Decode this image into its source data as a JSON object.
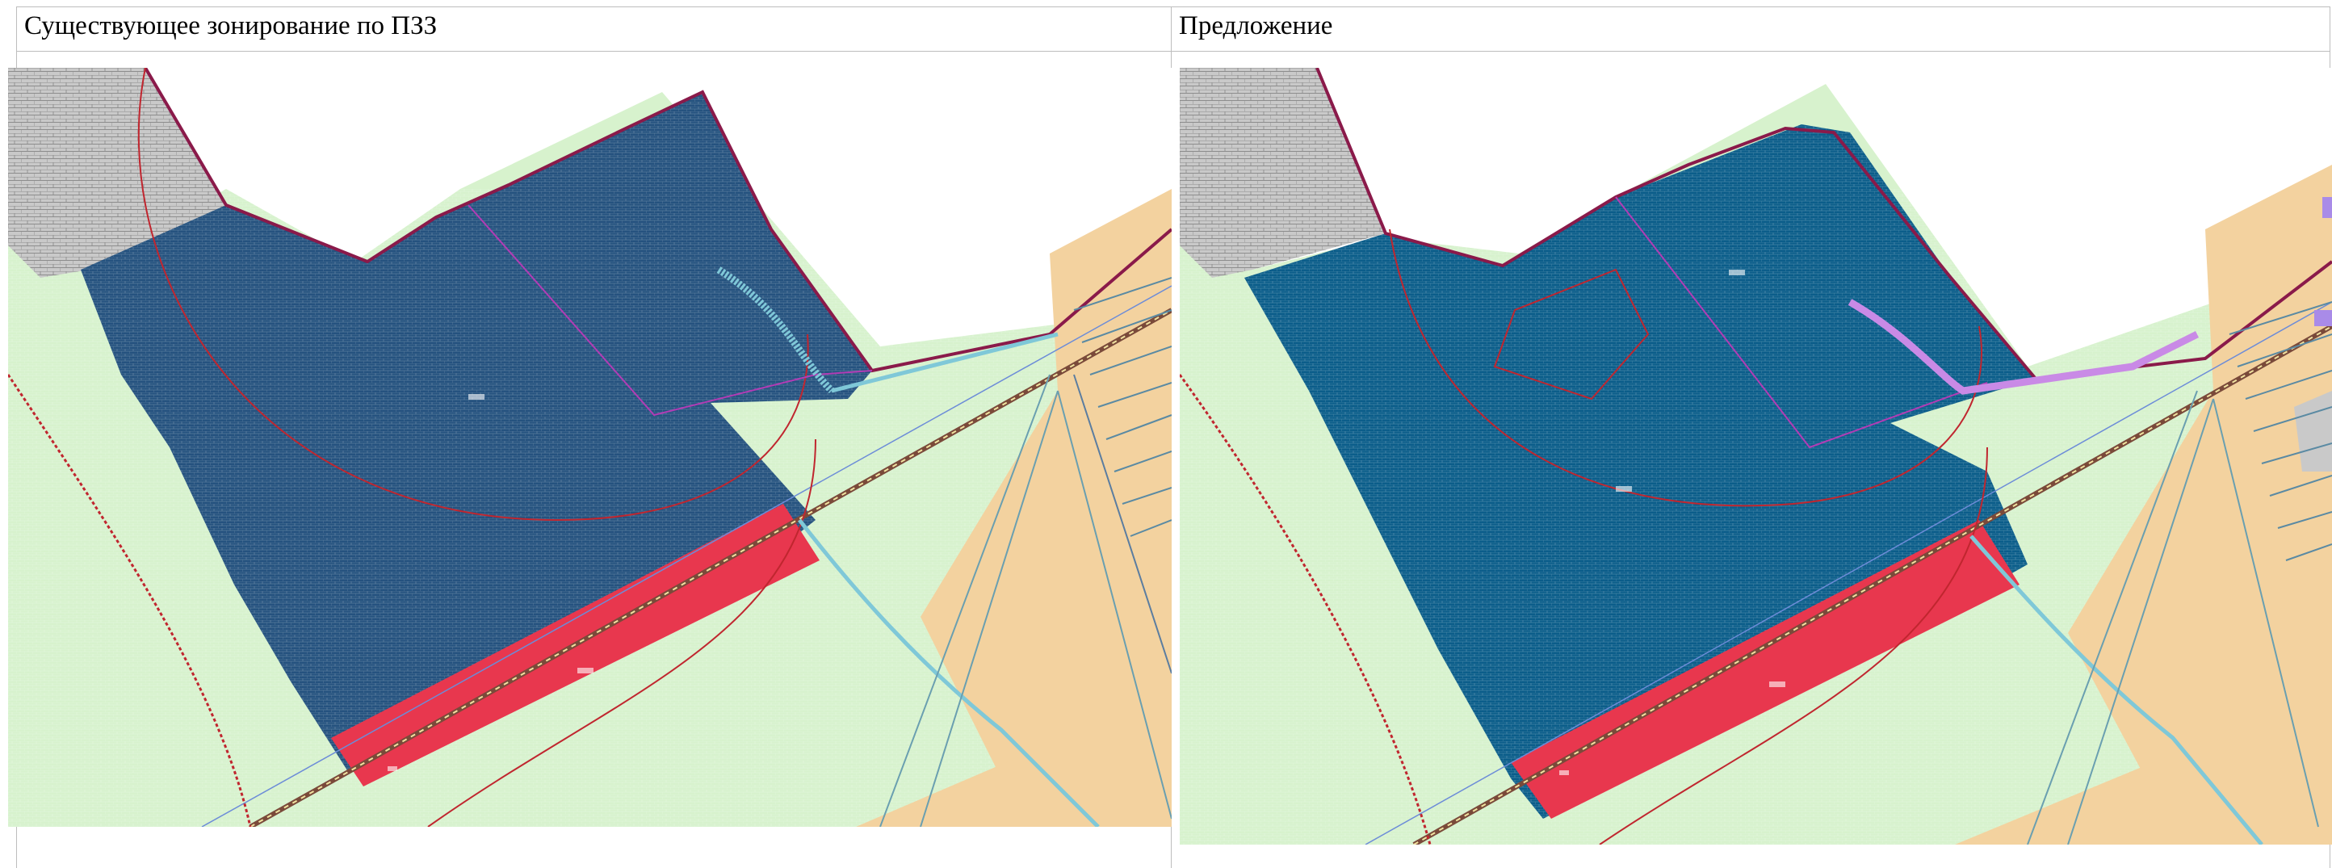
{
  "table": {
    "left_header": "Существующее зонирование по ПЗЗ",
    "right_header": "Предложение"
  },
  "colors": {
    "dark_zone_existing": "#25527f",
    "dark_zone_proposed": "#0b5d8a",
    "green_zone": "#d7f2cd",
    "orange_zone": "#f3d29f",
    "red_zone": "#e8374e",
    "grey_zone": "#c9c9c9",
    "boundary_red": "#c0262f",
    "boundary_maroon": "#8a1a4a",
    "road_cyan": "#7fc8d8",
    "proposed_path_purple": "#c98ae6"
  }
}
